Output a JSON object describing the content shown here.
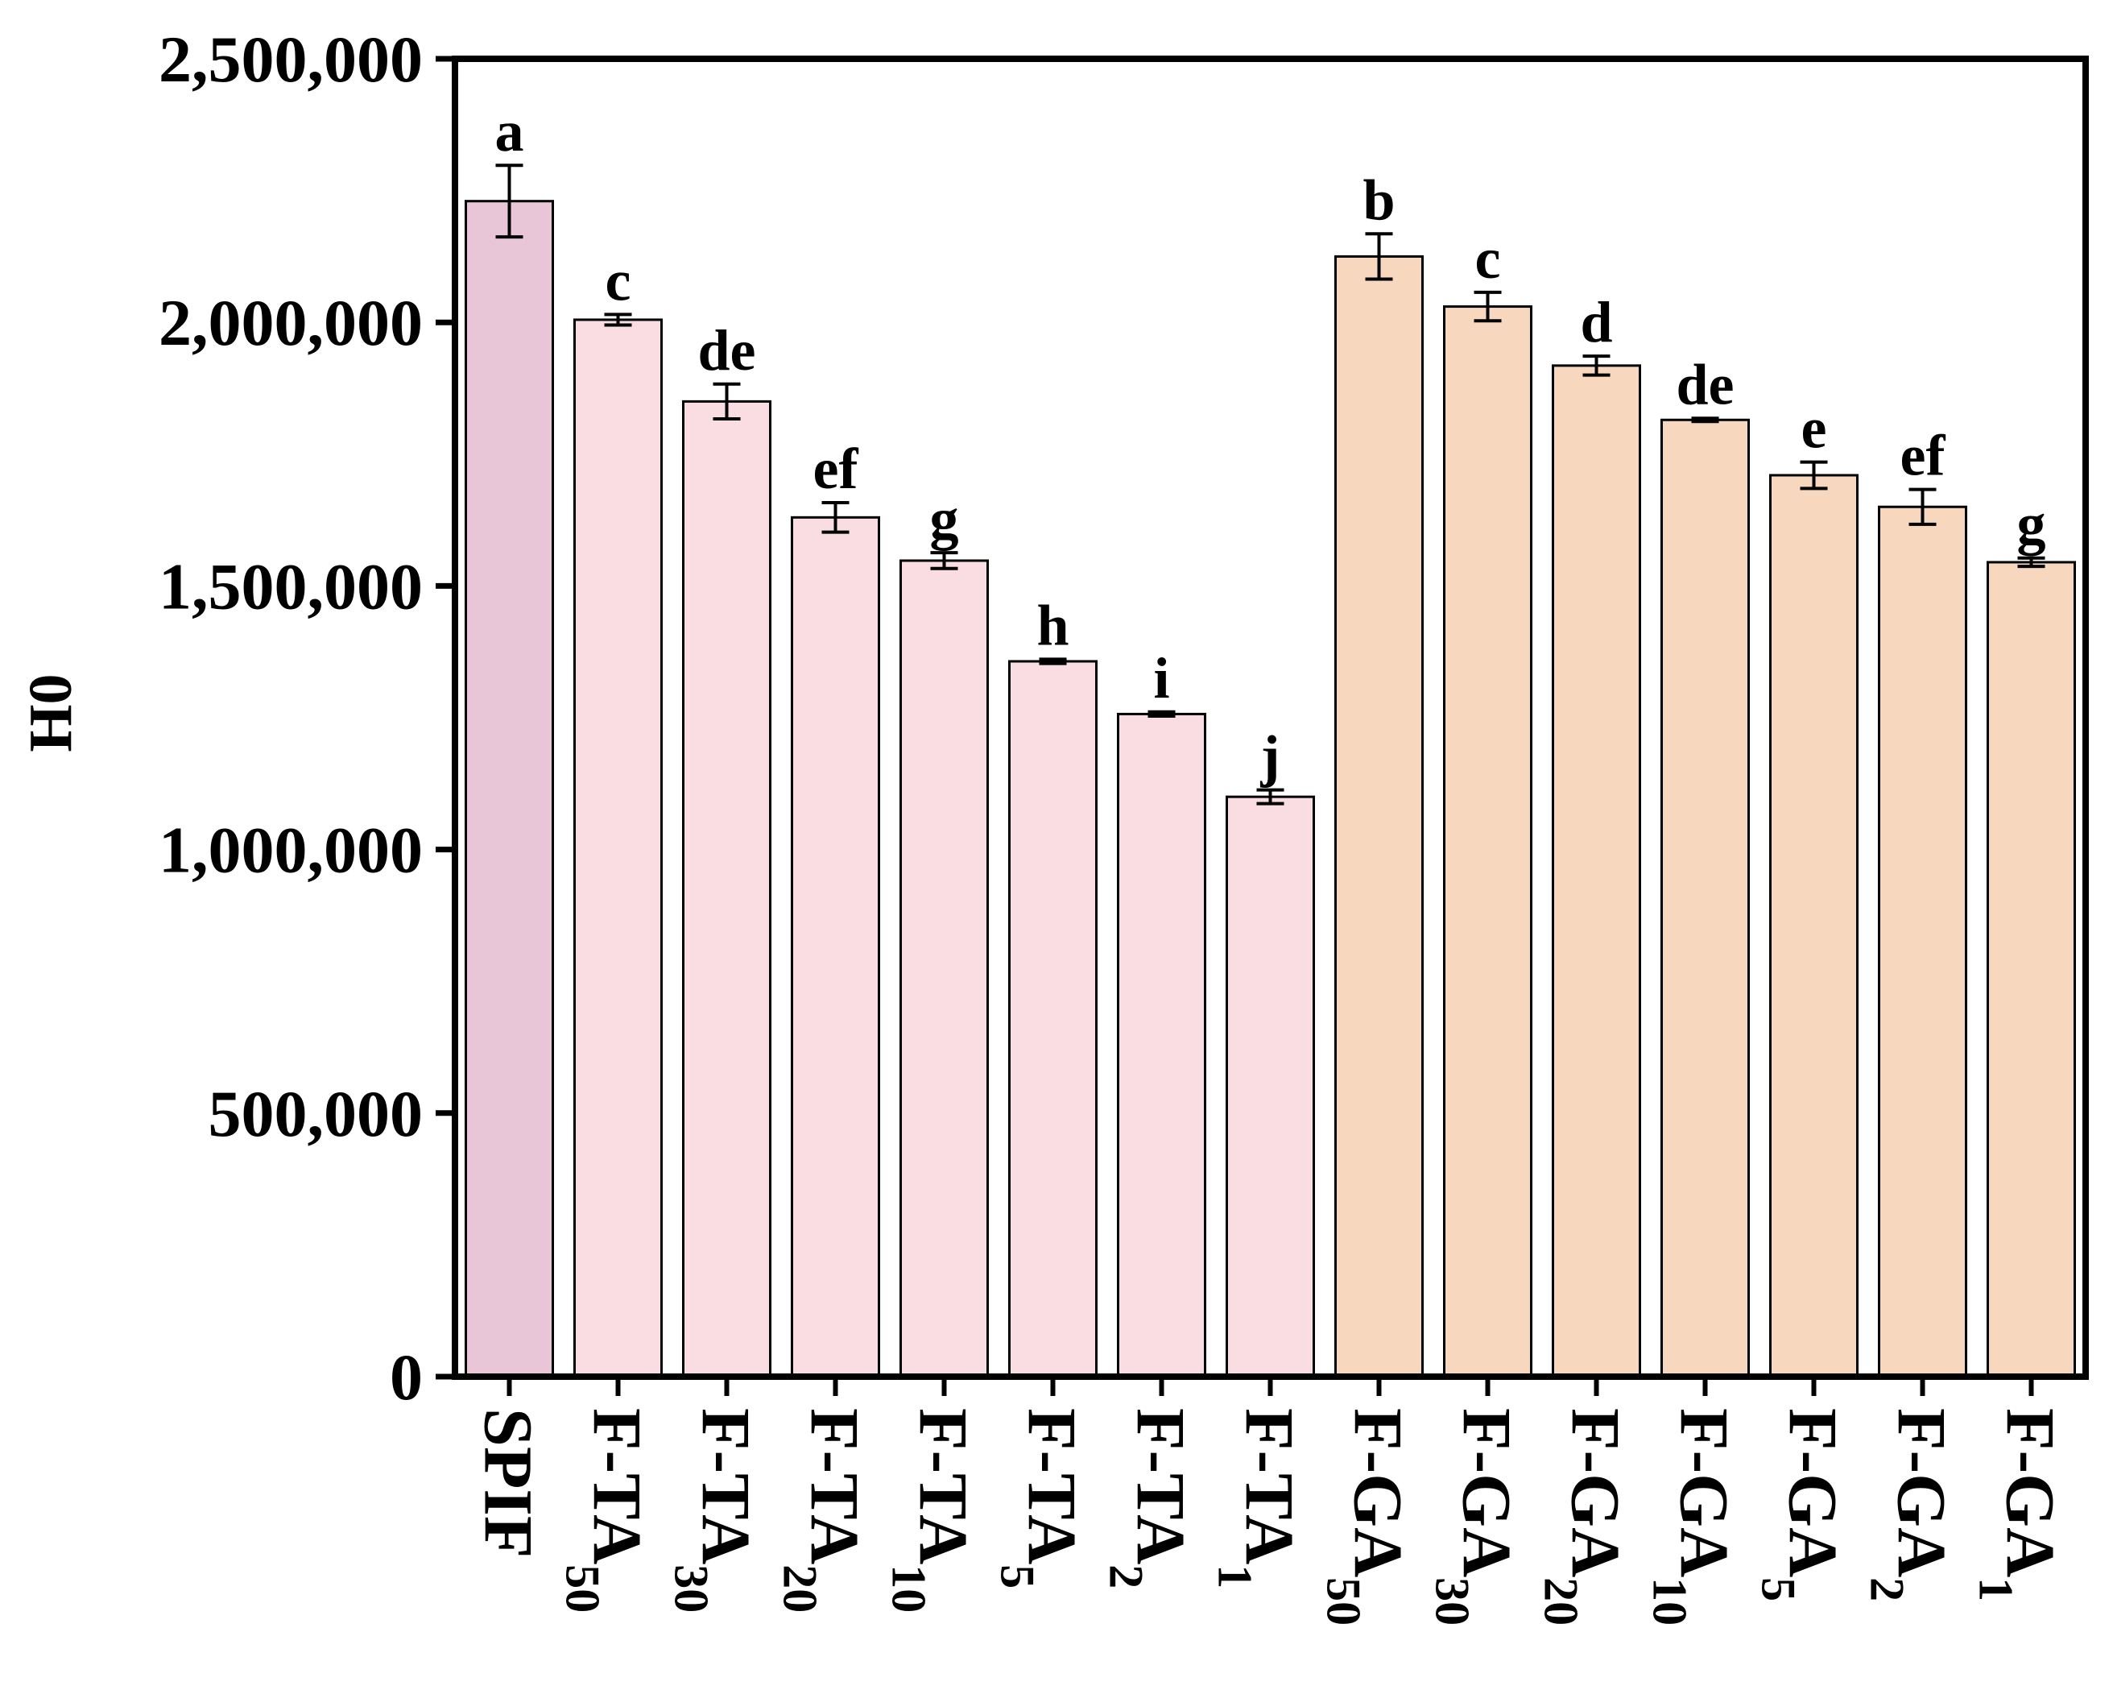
{
  "chart_data": {
    "type": "bar",
    "title": "",
    "xlabel": "",
    "ylabel": "H0",
    "ylim": [
      0,
      2500000
    ],
    "yticks": [
      0,
      500000,
      1000000,
      1500000,
      2000000,
      2500000
    ],
    "ytick_labels": [
      "0",
      "500,000",
      "1,000,000",
      "1,500,000",
      "2,000,000",
      "2,500,000"
    ],
    "grid": false,
    "legend": "none",
    "categories": [
      {
        "base": "SPIF",
        "sub": ""
      },
      {
        "base": "F-TA",
        "sub": "50"
      },
      {
        "base": "F-TA",
        "sub": "30"
      },
      {
        "base": "F-TA",
        "sub": "20"
      },
      {
        "base": "F-TA",
        "sub": "10"
      },
      {
        "base": "F-TA",
        "sub": "5"
      },
      {
        "base": "F-TA",
        "sub": "2"
      },
      {
        "base": "F-TA",
        "sub": "1"
      },
      {
        "base": "F-GA",
        "sub": "50"
      },
      {
        "base": "F-GA",
        "sub": "30"
      },
      {
        "base": "F-GA",
        "sub": "20"
      },
      {
        "base": "F-GA",
        "sub": "10"
      },
      {
        "base": "F-GA",
        "sub": "5"
      },
      {
        "base": "F-GA",
        "sub": "2"
      },
      {
        "base": "F-GA",
        "sub": "1"
      }
    ],
    "values": [
      2230000,
      2005000,
      1850000,
      1630000,
      1548000,
      1357000,
      1257000,
      1100000,
      2125000,
      2030000,
      1918000,
      1815000,
      1710000,
      1650000,
      1545000
    ],
    "errors": [
      68000,
      10000,
      33000,
      28000,
      15000,
      4000,
      4000,
      13000,
      43000,
      27000,
      18000,
      3000,
      25000,
      33000,
      8000
    ],
    "significance": [
      "a",
      "c",
      "de",
      "ef",
      "g",
      "h",
      "i",
      "j",
      "b",
      "c",
      "d",
      "de",
      "e",
      "ef",
      "g"
    ],
    "bar_colors": [
      "#e8c5d7",
      "#f9dde2",
      "#f9dde2",
      "#f9dde2",
      "#f9dde2",
      "#f9dde2",
      "#f9dde2",
      "#f9dde2",
      "#f7d8bf",
      "#f7d8bf",
      "#f7d8bf",
      "#f7d8bf",
      "#f7d8bf",
      "#f7d8bf",
      "#f7d8bf"
    ]
  }
}
